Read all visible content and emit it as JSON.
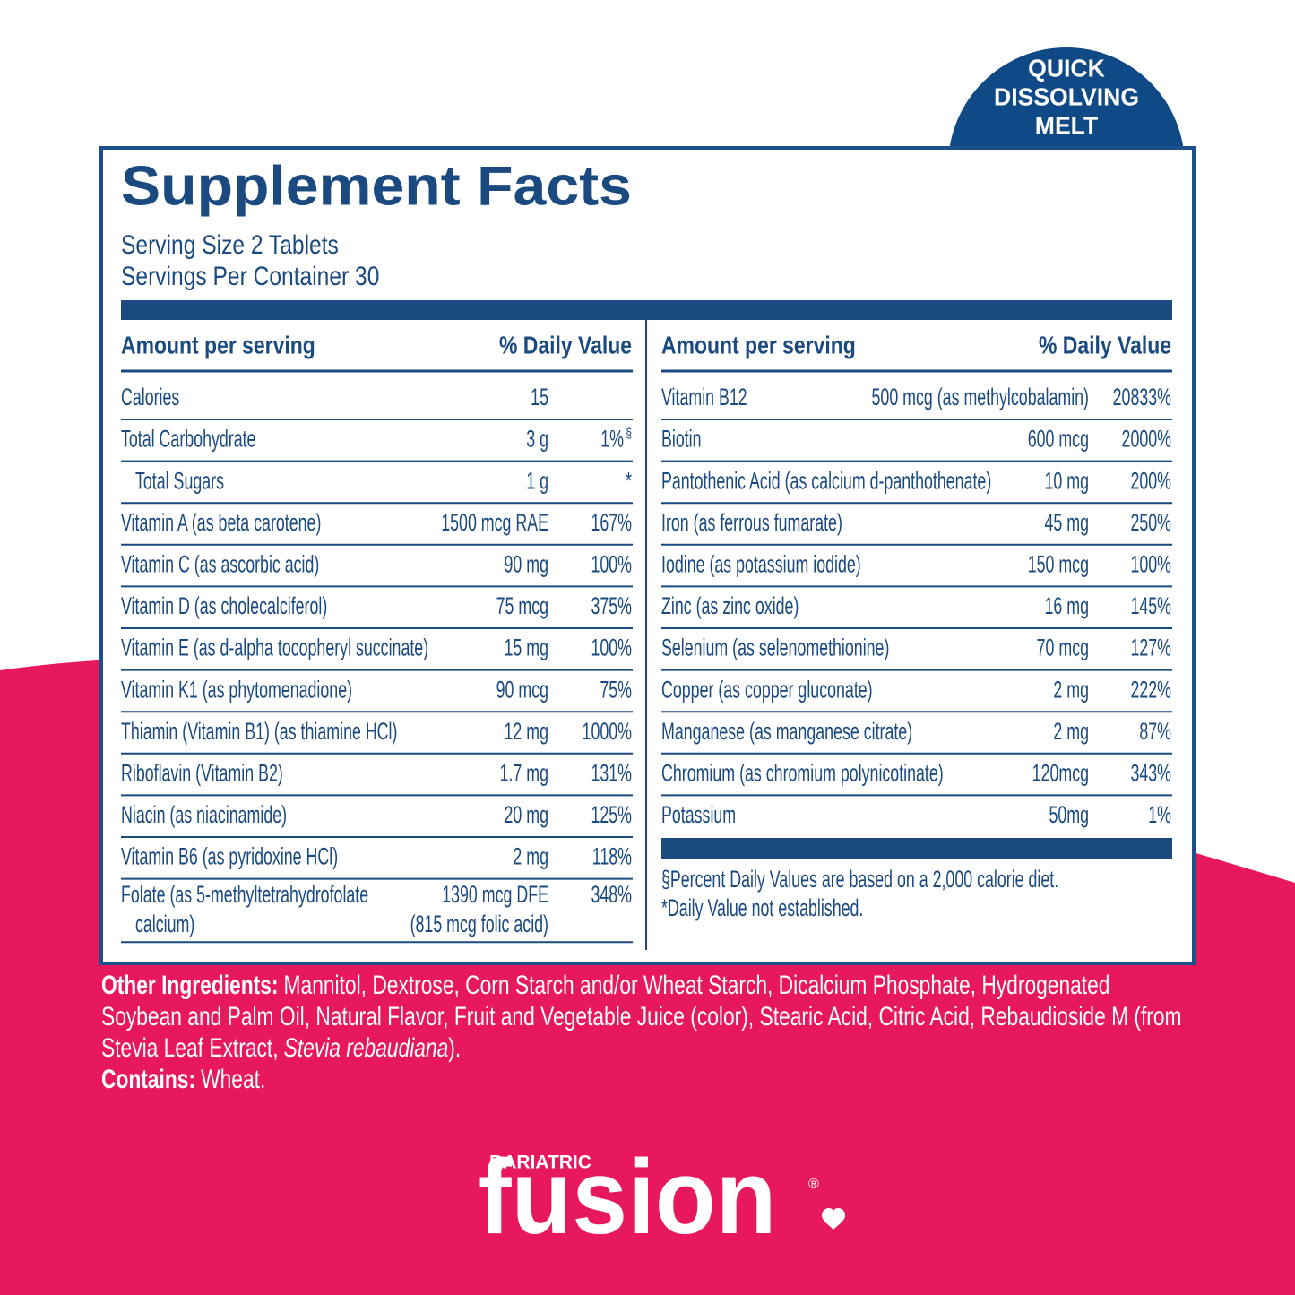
{
  "badge": {
    "lines": [
      "QUICK",
      "DISSOLVING",
      "MELT"
    ]
  },
  "panel": {
    "title": "Supplement Facts",
    "serving_size": "Serving Size 2 Tablets",
    "servings_per_container": "Servings Per Container 30"
  },
  "table": {
    "columns": [
      {
        "headers": [
          "Amount per serving",
          "% Daily Value"
        ],
        "rows": [
          {
            "name": "Calories",
            "amount": "15"
          },
          {
            "name": "Total Carbohydrate",
            "amount": "3 g",
            "dv": "1%",
            "dv_note": "§"
          },
          {
            "name": "Total Sugars",
            "amount": "1 g",
            "dv": "*",
            "indent": true
          },
          {
            "name": "Vitamin A (as beta carotene)",
            "amount": "1500 mcg RAE",
            "dv": "167%"
          },
          {
            "name": "Vitamin C (as ascorbic acid)",
            "amount": "90 mg",
            "dv": "100%"
          },
          {
            "name": "Vitamin D (as cholecalciferol)",
            "amount": "75 mcg",
            "dv": "375%"
          },
          {
            "name": "Vitamin E (as d-alpha tocopheryl succinate)",
            "amount": "15 mg",
            "dv": "100%"
          },
          {
            "name": "Vitamin K1 (as phytomenadione)",
            "amount": "90 mcg",
            "dv": "75%"
          },
          {
            "name": "Thiamin (Vitamin B1) (as thiamine HCl)",
            "amount": "12 mg",
            "dv": "1000%"
          },
          {
            "name": "Riboflavin (Vitamin B2)",
            "amount": "1.7 mg",
            "dv": "131%"
          },
          {
            "name": "Niacin (as niacinamide)",
            "amount": "20 mg",
            "dv": "125%"
          },
          {
            "name": "Vitamin B6 (as pyridoxine HCl)",
            "amount": "2 mg",
            "dv": "118%"
          },
          {
            "name": [
              "Folate (as 5-methyltetrahydrofolate",
              "calcium)"
            ],
            "amount": [
              "1390 mcg DFE",
              "(815 mcg folic acid)"
            ],
            "dv": "348%"
          }
        ]
      },
      {
        "headers": [
          "Amount per serving",
          "% Daily Value"
        ],
        "rows": [
          {
            "name": "Vitamin B12",
            "amount": "500 mcg (as methylcobalamin)",
            "dv": "20833%"
          },
          {
            "name": "Biotin",
            "amount": "600 mcg",
            "dv": "2000%"
          },
          {
            "name": "Pantothenic Acid (as calcium d-panthothenate)",
            "amount": "10 mg",
            "dv": "200%"
          },
          {
            "name": "Iron (as ferrous fumarate)",
            "amount": "45 mg",
            "dv": "250%"
          },
          {
            "name": "Iodine (as potassium iodide)",
            "amount": "150 mcg",
            "dv": "100%"
          },
          {
            "name": "Zinc (as zinc oxide)",
            "amount": "16 mg",
            "dv": "145%"
          },
          {
            "name": "Selenium (as selenomethionine)",
            "amount": "70 mcg",
            "dv": "127%"
          },
          {
            "name": "Copper (as copper gluconate)",
            "amount": "2 mg",
            "dv": "222%"
          },
          {
            "name": "Manganese (as manganese citrate)",
            "amount": "2 mg",
            "dv": "87%"
          },
          {
            "name": "Chromium (as chromium polynicotinate)",
            "amount": "120mcg",
            "dv": "343%"
          },
          {
            "name": "Potassium",
            "amount": "50mg",
            "dv": "1%"
          }
        ],
        "footnotes": [
          "§Percent Daily Values are based on a 2,000 calorie diet.",
          "*Daily Value not established."
        ]
      }
    ]
  },
  "other_ingredients": {
    "label": "Other Ingredients:",
    "lines": [
      "Mannitol, Dextrose, Corn Starch and/or Wheat Starch, Dicalcium Phosphate, Hydrogenated",
      "Soybean and Palm Oil, Natural Flavor, Fruit and Vegetable Juice (color), Stearic Acid, Citric Acid, Rebaudioside M (from",
      "Stevia Leaf Extract,"
    ],
    "italic": "Stevia rebaudiana",
    "closing": ")."
  },
  "contains": {
    "label": "Contains:",
    "text": "Wheat."
  },
  "logo": {
    "brand_top": "BARIATRIC",
    "brand": "fusion",
    "mark": "®"
  }
}
